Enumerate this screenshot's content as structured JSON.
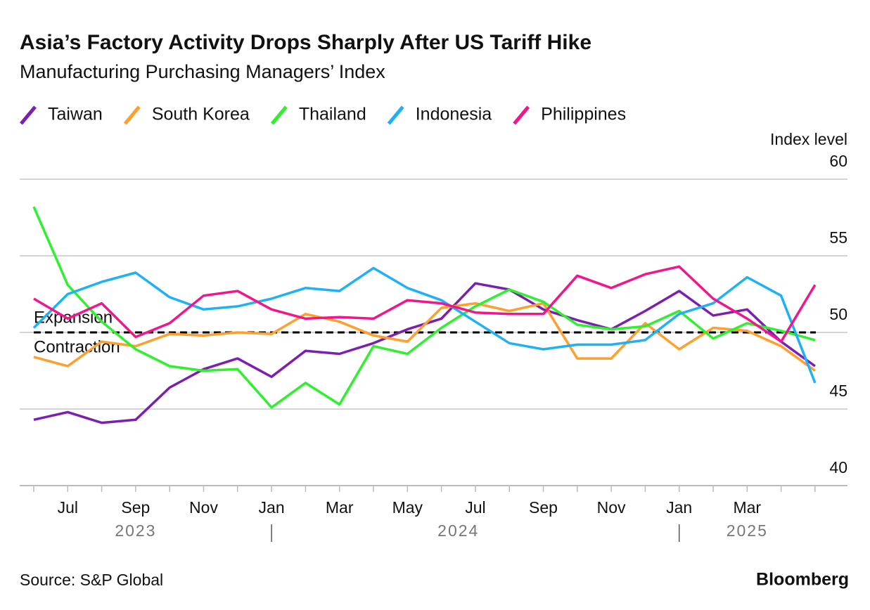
{
  "chart_data": {
    "type": "line",
    "title": "Asia’s Factory Activity Drops Sharply After US Tariff Hike",
    "subtitle": "Manufacturing Purchasing Managers’ Index",
    "y_axis_label": "Index level",
    "source": "Source: S&P Global",
    "brand": "Bloomberg",
    "categories": [
      null,
      "Jul",
      null,
      "Sep",
      null,
      "Nov",
      null,
      "Jan",
      null,
      "Mar",
      null,
      "May",
      null,
      "Jul",
      null,
      "Sep",
      null,
      "Nov",
      null,
      "Jan",
      null,
      "Mar",
      null,
      null
    ],
    "years": [
      {
        "label": "2023",
        "start": 0
      },
      {
        "label": "2024",
        "start": 7
      },
      {
        "label": "2025",
        "start": 19
      }
    ],
    "reference_line": 50,
    "annotations": [
      "Expansion",
      "Contraction"
    ],
    "ylim": [
      40,
      60
    ],
    "yticks": [
      40,
      45,
      50,
      55,
      60
    ],
    "grid": true,
    "series": [
      {
        "name": "Taiwan",
        "color": "#7b1fb0",
        "values": [
          44.3,
          44.8,
          44.1,
          44.3,
          46.4,
          47.6,
          48.3,
          47.1,
          48.8,
          48.6,
          49.3,
          50.2,
          50.9,
          53.2,
          52.8,
          51.5,
          50.8,
          50.2,
          51.4,
          52.7,
          51.1,
          51.5,
          49.4,
          47.8
        ]
      },
      {
        "name": "South Korea",
        "color": "#ff9f2e",
        "values": [
          48.4,
          47.8,
          49.4,
          49.1,
          49.9,
          49.8,
          50.0,
          49.9,
          51.2,
          50.7,
          49.8,
          49.4,
          51.6,
          51.9,
          51.4,
          51.9,
          48.3,
          48.3,
          50.6,
          48.9,
          50.3,
          50.1,
          49.1,
          47.5
        ]
      },
      {
        "name": "Thailand",
        "color": "#2ef02e",
        "values": [
          58.2,
          53.1,
          50.7,
          48.9,
          47.8,
          47.5,
          47.6,
          45.1,
          46.7,
          45.3,
          49.1,
          48.6,
          50.3,
          51.7,
          52.8,
          52.0,
          50.5,
          50.2,
          50.4,
          51.4,
          49.6,
          50.6,
          50.1,
          49.5
        ]
      },
      {
        "name": "Indonesia",
        "color": "#1fb0f5",
        "values": [
          50.3,
          52.5,
          53.3,
          53.9,
          52.3,
          51.5,
          51.7,
          52.2,
          52.9,
          52.7,
          54.2,
          52.9,
          52.1,
          50.7,
          49.3,
          48.9,
          49.2,
          49.2,
          49.5,
          51.2,
          51.9,
          53.6,
          52.4,
          46.7
        ]
      },
      {
        "name": "Philippines",
        "color": "#f0168c",
        "values": [
          52.2,
          50.9,
          51.9,
          49.7,
          50.6,
          52.4,
          52.7,
          51.5,
          50.9,
          51.0,
          50.9,
          52.1,
          51.9,
          51.3,
          51.2,
          51.2,
          53.7,
          52.9,
          53.8,
          54.3,
          52.2,
          50.9,
          49.4,
          53.1
        ]
      }
    ]
  }
}
